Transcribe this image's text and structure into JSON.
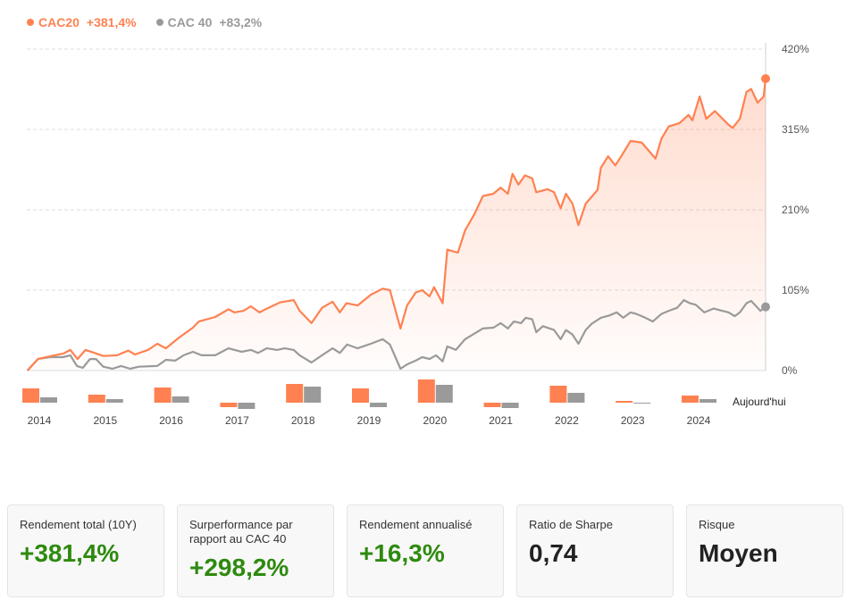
{
  "legend": [
    {
      "name": "CAC20",
      "value": "+381,4%",
      "color": "#ff8151"
    },
    {
      "name": "CAC 40",
      "value": "+83,2%",
      "color": "#9a9a9a"
    }
  ],
  "chart_data": {
    "type": "line",
    "y_ticks": [
      "420%",
      "315%",
      "210%",
      "105%",
      "0%"
    ],
    "y_tick_values": [
      420,
      315,
      210,
      105,
      0
    ],
    "ylim": [
      0,
      420
    ],
    "xlim": [
      2013.8,
      2025.01
    ],
    "grid": true,
    "legend_position": "top-left",
    "series": [
      {
        "name": "CAC20",
        "color": "#ff8151",
        "points": [
          [
            2013.81,
            0
          ],
          [
            2013.97,
            15
          ],
          [
            2014.22,
            20
          ],
          [
            2014.35,
            22
          ],
          [
            2014.46,
            27
          ],
          [
            2014.57,
            15
          ],
          [
            2014.69,
            27
          ],
          [
            2014.83,
            23
          ],
          [
            2014.96,
            19
          ],
          [
            2015.17,
            20
          ],
          [
            2015.34,
            26
          ],
          [
            2015.44,
            21
          ],
          [
            2015.64,
            27
          ],
          [
            2015.78,
            35
          ],
          [
            2015.91,
            29
          ],
          [
            2016.11,
            43
          ],
          [
            2016.32,
            56
          ],
          [
            2016.41,
            64
          ],
          [
            2016.66,
            70
          ],
          [
            2016.86,
            80
          ],
          [
            2016.95,
            76
          ],
          [
            2017.09,
            78
          ],
          [
            2017.2,
            84
          ],
          [
            2017.33,
            76
          ],
          [
            2017.47,
            82
          ],
          [
            2017.64,
            89
          ],
          [
            2017.85,
            92
          ],
          [
            2017.94,
            78
          ],
          [
            2018.12,
            62
          ],
          [
            2018.28,
            82
          ],
          [
            2018.44,
            90
          ],
          [
            2018.55,
            76
          ],
          [
            2018.65,
            88
          ],
          [
            2018.82,
            85
          ],
          [
            2019.02,
            99
          ],
          [
            2019.2,
            107
          ],
          [
            2019.31,
            105
          ],
          [
            2019.47,
            55
          ],
          [
            2019.57,
            85
          ],
          [
            2019.7,
            102
          ],
          [
            2019.8,
            105
          ],
          [
            2019.91,
            97
          ],
          [
            2019.98,
            109
          ],
          [
            2020.11,
            88
          ],
          [
            2020.18,
            158
          ],
          [
            2020.34,
            154
          ],
          [
            2020.45,
            183
          ],
          [
            2020.59,
            204
          ],
          [
            2020.72,
            228
          ],
          [
            2020.88,
            231
          ],
          [
            2020.99,
            239
          ],
          [
            2021.1,
            231
          ],
          [
            2021.17,
            257
          ],
          [
            2021.26,
            243
          ],
          [
            2021.36,
            255
          ],
          [
            2021.47,
            251
          ],
          [
            2021.53,
            233
          ],
          [
            2021.7,
            237
          ],
          [
            2021.8,
            233
          ],
          [
            2021.9,
            212
          ],
          [
            2021.98,
            231
          ],
          [
            2022.08,
            218
          ],
          [
            2022.17,
            190
          ],
          [
            2022.28,
            218
          ],
          [
            2022.46,
            236
          ],
          [
            2022.51,
            265
          ],
          [
            2022.62,
            280
          ],
          [
            2022.73,
            268
          ],
          [
            2022.82,
            280
          ],
          [
            2022.96,
            300
          ],
          [
            2023.13,
            298
          ],
          [
            2023.34,
            277
          ],
          [
            2023.43,
            303
          ],
          [
            2023.54,
            319
          ],
          [
            2023.7,
            323
          ],
          [
            2023.84,
            334
          ],
          [
            2023.9,
            327
          ],
          [
            2024.01,
            358
          ],
          [
            2024.11,
            329
          ],
          [
            2024.24,
            339
          ],
          [
            2024.45,
            321
          ],
          [
            2024.51,
            317
          ],
          [
            2024.62,
            329
          ],
          [
            2024.72,
            364
          ],
          [
            2024.79,
            368
          ],
          [
            2024.89,
            350
          ],
          [
            2024.98,
            358
          ],
          [
            2025.01,
            381.4
          ]
        ]
      },
      {
        "name": "CAC 40",
        "color": "#9a9a9a",
        "points": [
          [
            2013.81,
            0
          ],
          [
            2013.97,
            15
          ],
          [
            2014.15,
            17.5
          ],
          [
            2014.35,
            17.5
          ],
          [
            2014.46,
            20
          ],
          [
            2014.56,
            6
          ],
          [
            2014.65,
            3.5
          ],
          [
            2014.76,
            15
          ],
          [
            2014.85,
            15
          ],
          [
            2014.96,
            5
          ],
          [
            2015.1,
            2.3
          ],
          [
            2015.23,
            6
          ],
          [
            2015.37,
            2.3
          ],
          [
            2015.5,
            5
          ],
          [
            2015.78,
            6
          ],
          [
            2015.91,
            14
          ],
          [
            2016.05,
            13
          ],
          [
            2016.18,
            20
          ],
          [
            2016.32,
            24.5
          ],
          [
            2016.45,
            20
          ],
          [
            2016.66,
            20
          ],
          [
            2016.86,
            29
          ],
          [
            2017.06,
            24.5
          ],
          [
            2017.2,
            27
          ],
          [
            2017.31,
            23
          ],
          [
            2017.44,
            29
          ],
          [
            2017.6,
            27
          ],
          [
            2017.71,
            29
          ],
          [
            2017.85,
            27
          ],
          [
            2017.94,
            20
          ],
          [
            2018.12,
            10.5
          ],
          [
            2018.28,
            20
          ],
          [
            2018.44,
            29
          ],
          [
            2018.55,
            23
          ],
          [
            2018.66,
            34
          ],
          [
            2018.82,
            29
          ],
          [
            2019.02,
            35
          ],
          [
            2019.2,
            41
          ],
          [
            2019.31,
            34
          ],
          [
            2019.47,
            2.3
          ],
          [
            2019.57,
            8
          ],
          [
            2019.7,
            13
          ],
          [
            2019.8,
            17.5
          ],
          [
            2019.91,
            15
          ],
          [
            2020.01,
            20
          ],
          [
            2020.11,
            12
          ],
          [
            2020.18,
            31.5
          ],
          [
            2020.31,
            27
          ],
          [
            2020.45,
            41
          ],
          [
            2020.72,
            55
          ],
          [
            2020.88,
            56
          ],
          [
            2020.99,
            62
          ],
          [
            2021.1,
            55
          ],
          [
            2021.19,
            64
          ],
          [
            2021.3,
            62
          ],
          [
            2021.37,
            69
          ],
          [
            2021.47,
            67
          ],
          [
            2021.53,
            50
          ],
          [
            2021.63,
            58
          ],
          [
            2021.8,
            53
          ],
          [
            2021.9,
            41
          ],
          [
            2021.98,
            53
          ],
          [
            2022.08,
            47
          ],
          [
            2022.17,
            35
          ],
          [
            2022.28,
            53
          ],
          [
            2022.37,
            61
          ],
          [
            2022.51,
            69
          ],
          [
            2022.64,
            72
          ],
          [
            2022.75,
            76
          ],
          [
            2022.85,
            69
          ],
          [
            2022.96,
            76
          ],
          [
            2023.05,
            74
          ],
          [
            2023.16,
            70
          ],
          [
            2023.3,
            64
          ],
          [
            2023.43,
            74
          ],
          [
            2023.54,
            78
          ],
          [
            2023.67,
            82
          ],
          [
            2023.77,
            92
          ],
          [
            2023.86,
            88
          ],
          [
            2023.95,
            86
          ],
          [
            2024.08,
            76
          ],
          [
            2024.22,
            81
          ],
          [
            2024.35,
            78
          ],
          [
            2024.45,
            76
          ],
          [
            2024.54,
            71
          ],
          [
            2024.62,
            76
          ],
          [
            2024.72,
            88
          ],
          [
            2024.79,
            91
          ],
          [
            2024.89,
            82
          ],
          [
            2024.93,
            78
          ],
          [
            2025.01,
            83.2
          ]
        ]
      }
    ],
    "annual": {
      "type": "bar",
      "categories": [
        "2014",
        "2015",
        "2016",
        "2017",
        "2018",
        "2019",
        "2020",
        "2021",
        "2022",
        "2023",
        "2024"
      ],
      "series": [
        {
          "name": "CAC20",
          "values": [
            32,
            18,
            34,
            -10,
            42,
            32,
            52,
            -10,
            38,
            4,
            16
          ]
        },
        {
          "name": "CAC 40",
          "values": [
            12,
            8,
            14,
            -14,
            36,
            -10,
            40,
            -12,
            22,
            -0.6,
            8
          ]
        }
      ],
      "end_label": "Aujourd'hui"
    }
  },
  "cards": [
    {
      "label": "Rendement total (10Y)",
      "value": "+381,4%",
      "tone": "green"
    },
    {
      "label": "Surperformance par rapport au CAC 40",
      "value": "+298,2%",
      "tone": "green"
    },
    {
      "label": "Rendement annualisé",
      "value": "+16,3%",
      "tone": "green"
    },
    {
      "label": "Ratio de Sharpe",
      "value": "0,74",
      "tone": "dark"
    },
    {
      "label": "Risque",
      "value": "Moyen",
      "tone": "dark"
    }
  ]
}
